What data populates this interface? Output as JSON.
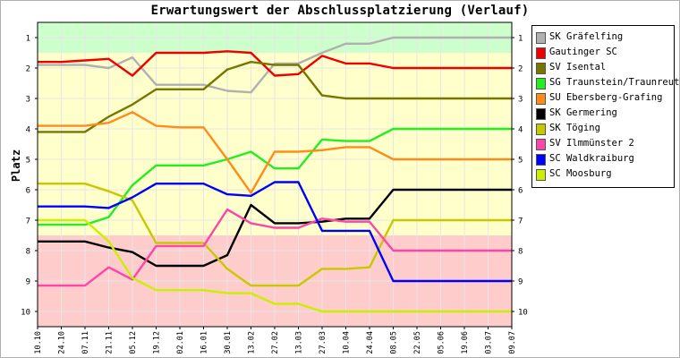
{
  "chart_data": {
    "type": "line",
    "title": "Erwartungswert der Abschlussplatzierung (Verlauf)",
    "ylabel": "Platz",
    "xlabel": "",
    "categories": [
      "10.10",
      "24.10",
      "07.11",
      "21.11",
      "05.12",
      "19.12",
      "02.01",
      "16.01",
      "30.01",
      "13.02",
      "27.02",
      "13.03",
      "27.03",
      "10.04",
      "24.04",
      "08.05",
      "22.05",
      "05.06",
      "19.06",
      "03.07",
      "09.07"
    ],
    "ylim": [
      10.5,
      0.5
    ],
    "yticks": [
      1,
      2,
      3,
      4,
      5,
      6,
      7,
      8,
      9,
      10
    ],
    "bands": [
      {
        "from": 0.5,
        "to": 1.5,
        "color": "#ccffcc"
      },
      {
        "from": 1.5,
        "to": 7.5,
        "color": "#ffffcc"
      },
      {
        "from": 7.5,
        "to": 10.5,
        "color": "#ffcccc"
      }
    ],
    "series": [
      {
        "name": "SK Gräfelfing",
        "color": "#b0b0b0",
        "values": [
          1.9,
          1.9,
          1.9,
          2.0,
          1.65,
          2.55,
          2.55,
          2.55,
          2.75,
          2.8,
          1.85,
          1.85,
          1.5,
          1.2,
          1.2,
          1.0,
          1.0,
          1.0,
          1.0,
          1.0,
          1.0
        ]
      },
      {
        "name": "Gautinger SC",
        "color": "#ee0000",
        "values": [
          1.8,
          1.8,
          1.75,
          1.7,
          2.25,
          1.5,
          1.5,
          1.5,
          1.45,
          1.5,
          2.25,
          2.2,
          1.6,
          1.85,
          1.85,
          2.0,
          2.0,
          2.0,
          2.0,
          2.0,
          2.0
        ]
      },
      {
        "name": "SV Isental",
        "color": "#777700",
        "values": [
          4.1,
          4.1,
          4.1,
          3.6,
          3.2,
          2.7,
          2.7,
          2.7,
          2.05,
          1.8,
          1.9,
          1.9,
          2.9,
          3.0,
          3.0,
          3.0,
          3.0,
          3.0,
          3.0,
          3.0,
          3.0
        ]
      },
      {
        "name": "SG Traunstein/Traunreut",
        "color": "#22ee22",
        "values": [
          7.15,
          7.15,
          7.15,
          6.9,
          5.85,
          5.2,
          5.2,
          5.2,
          5.0,
          4.75,
          5.3,
          5.3,
          4.35,
          4.4,
          4.4,
          4.0,
          4.0,
          4.0,
          4.0,
          4.0,
          4.0
        ]
      },
      {
        "name": "SU Ebersberg-Grafing",
        "color": "#ff8c1a",
        "values": [
          3.9,
          3.9,
          3.9,
          3.8,
          3.45,
          3.9,
          3.95,
          3.95,
          5.0,
          6.1,
          4.75,
          4.75,
          4.7,
          4.6,
          4.6,
          5.0,
          5.0,
          5.0,
          5.0,
          5.0,
          5.0
        ]
      },
      {
        "name": "SK Germering",
        "color": "#000000",
        "values": [
          7.7,
          7.7,
          7.7,
          7.9,
          8.05,
          8.5,
          8.5,
          8.5,
          8.15,
          6.5,
          7.1,
          7.1,
          7.05,
          6.95,
          6.95,
          6.0,
          6.0,
          6.0,
          6.0,
          6.0,
          6.0
        ]
      },
      {
        "name": "SK Töging",
        "color": "#c8c800",
        "values": [
          5.8,
          5.8,
          5.8,
          6.05,
          6.35,
          7.75,
          7.75,
          7.75,
          8.6,
          9.15,
          9.15,
          9.15,
          8.6,
          8.6,
          8.55,
          7.0,
          7.0,
          7.0,
          7.0,
          7.0,
          7.0
        ]
      },
      {
        "name": "SV Ilmmünster 2",
        "color": "#ff44aa",
        "values": [
          9.15,
          9.15,
          9.15,
          8.55,
          8.95,
          7.85,
          7.85,
          7.85,
          6.65,
          7.1,
          7.25,
          7.25,
          6.95,
          7.05,
          7.05,
          8.0,
          8.0,
          8.0,
          8.0,
          8.0,
          8.0
        ]
      },
      {
        "name": "SC Waldkraiburg",
        "color": "#0000ff",
        "values": [
          6.55,
          6.55,
          6.55,
          6.6,
          6.25,
          5.8,
          5.8,
          5.8,
          6.15,
          6.2,
          5.75,
          5.75,
          7.35,
          7.35,
          7.35,
          9.0,
          9.0,
          9.0,
          9.0,
          9.0,
          9.0
        ]
      },
      {
        "name": "SC Moosburg",
        "color": "#ccee00",
        "values": [
          7.0,
          7.0,
          7.0,
          7.7,
          8.9,
          9.3,
          9.3,
          9.3,
          9.4,
          9.4,
          9.75,
          9.75,
          10.0,
          10.0,
          10.0,
          10.0,
          10.0,
          10.0,
          10.0,
          10.0,
          10.0
        ]
      }
    ]
  }
}
